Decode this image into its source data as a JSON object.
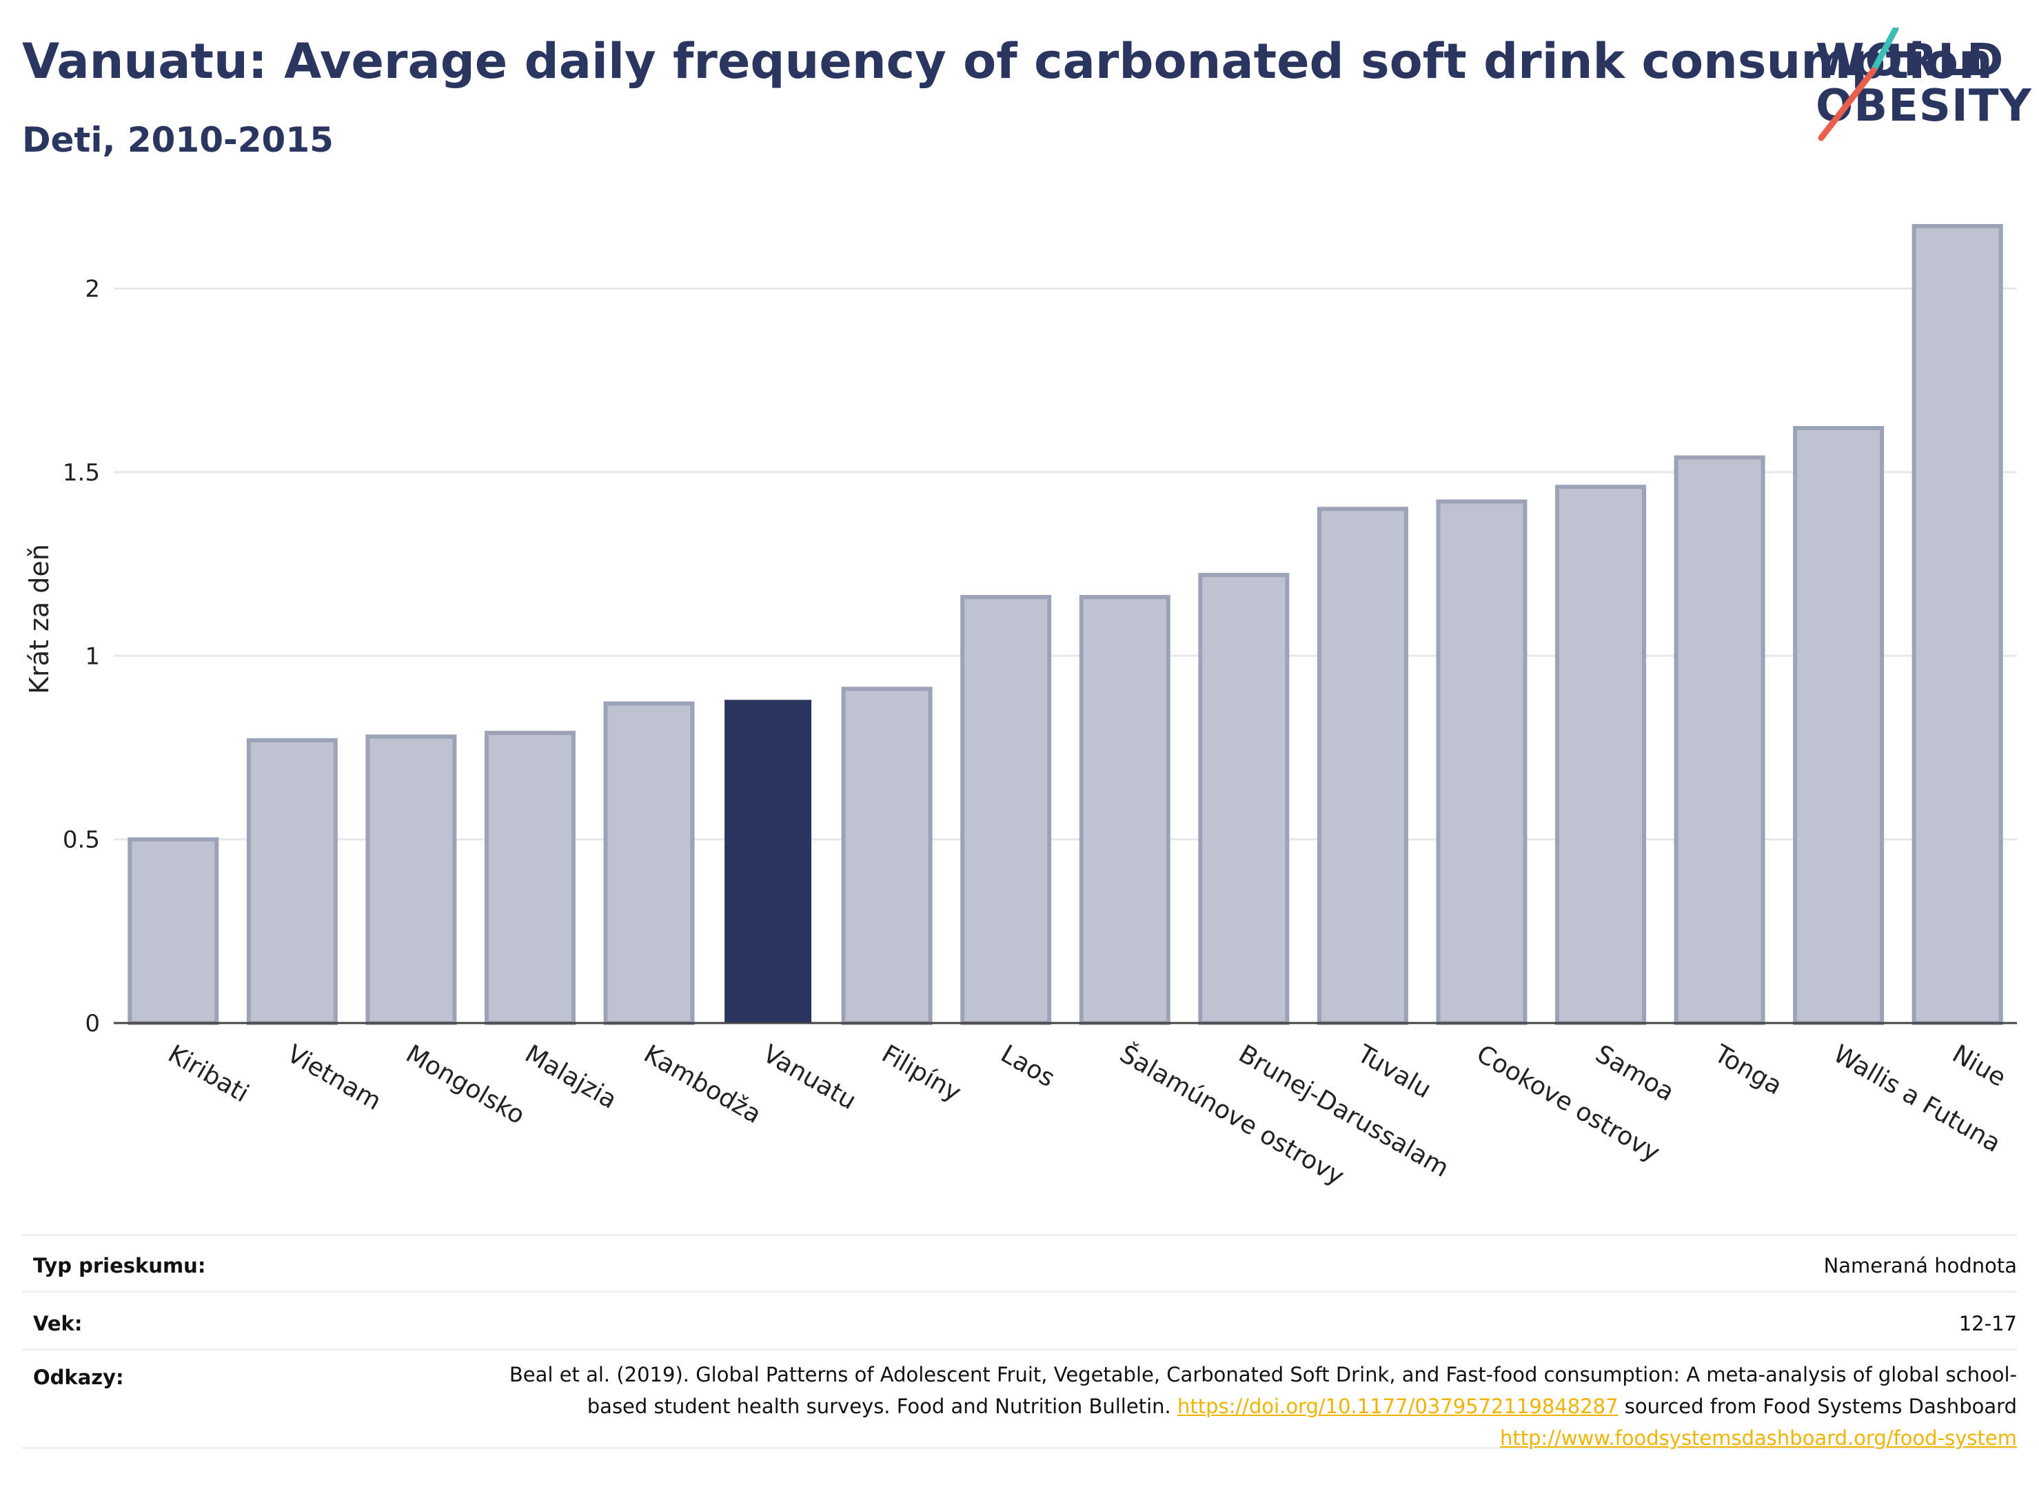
{
  "header": {
    "title": "Vanuatu: Average daily frequency of carbonated soft drink consumption",
    "subtitle": "Deti, 2010-2015"
  },
  "logo": {
    "line1": "WORLD",
    "line2": "OBESITY"
  },
  "colors": {
    "highlight": "#2b3660",
    "bar_fill": "#bfc3d0",
    "bar_stroke": "#9ca2b8",
    "accent_red": "#e8604c",
    "accent_teal": "#3dbfb8"
  },
  "chart_data": {
    "type": "bar",
    "ylabel": "Krát za deň",
    "xlabel": "",
    "ylim": [
      0,
      2.2
    ],
    "yticks": [
      0,
      0.5,
      1,
      1.5,
      2
    ],
    "ytick_labels": [
      "0",
      "0.5",
      "1",
      "1.5",
      "2"
    ],
    "highlight": "Vanuatu",
    "categories": [
      "Kiribati",
      "Vietnam",
      "Mongolsko",
      "Malajzia",
      "Kambodža",
      "Vanuatu",
      "Filipíny",
      "Laos",
      "Šalamúnove ostrovy",
      "Brunej-Darussalam",
      "Tuvalu",
      "Cookove ostrovy",
      "Samoa",
      "Tonga",
      "Wallis a Futuna",
      "Niue"
    ],
    "values": [
      0.5,
      0.77,
      0.78,
      0.79,
      0.87,
      0.88,
      0.91,
      1.16,
      1.16,
      1.22,
      1.4,
      1.42,
      1.46,
      1.54,
      1.62,
      2.17
    ],
    "grid": true
  },
  "info": {
    "survey_key": "Typ prieskumu:",
    "survey_val": "Nameraná hodnota",
    "age_key": "Vek:",
    "age_val": "12-17",
    "ref_key": "Odkazy:",
    "ref_text1": "Beal et al. (2019). Global Patterns of Adolescent Fruit, Vegetable, Carbonated Soft Drink, and Fast-food consumption: A meta-analysis of global school-based student health surveys. Food and Nutrition Bulletin. ",
    "ref_link1": "https://doi.org/10.1177/0379572119848287",
    "ref_text2": " sourced from Food Systems Dashboard ",
    "ref_link2": "http://www.foodsystemsdashboard.org/food-system"
  }
}
